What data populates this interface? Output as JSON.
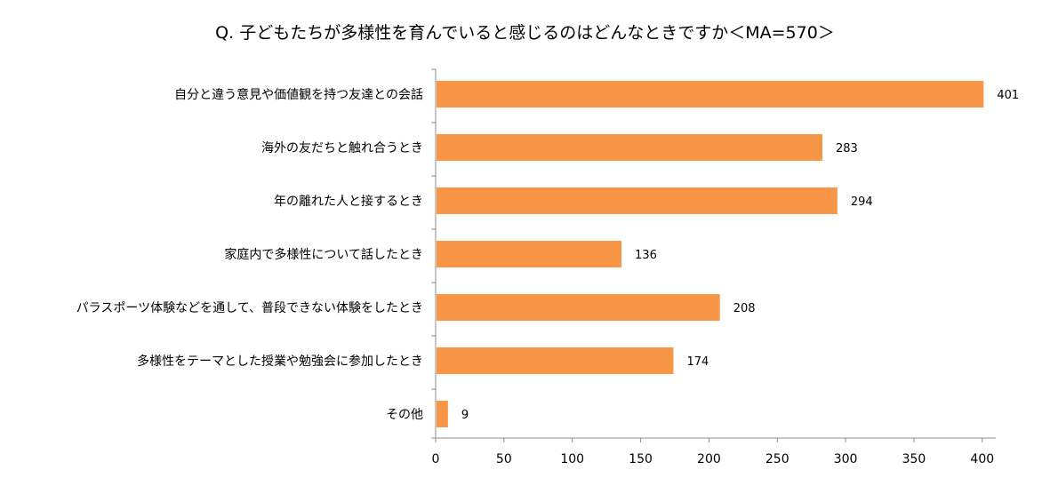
{
  "chart_data": {
    "type": "bar",
    "orientation": "horizontal",
    "title": "Q. 子どもたちが多様性を育んでいると感じるのはどんなときですか＜MA=570＞",
    "categories": [
      "自分と違う意見や価値観を持つ友達との会話",
      "海外の友だちと触れ合うとき",
      "年の離れた人と接するとき",
      "家庭内で多様性について話したとき",
      "パラスポーツ体験などを通して、普段できない体験をしたとき",
      "多様性をテーマとした授業や勉強会に参加したとき",
      "その他"
    ],
    "values": [
      401,
      283,
      294,
      136,
      208,
      174,
      9
    ],
    "xlim": [
      0,
      400
    ],
    "xticks": [
      0,
      50,
      100,
      150,
      200,
      250,
      300,
      350,
      400
    ],
    "grid": false,
    "legend": "none",
    "bar_color": "#F79646",
    "axis_color": "#8C8C8C"
  }
}
